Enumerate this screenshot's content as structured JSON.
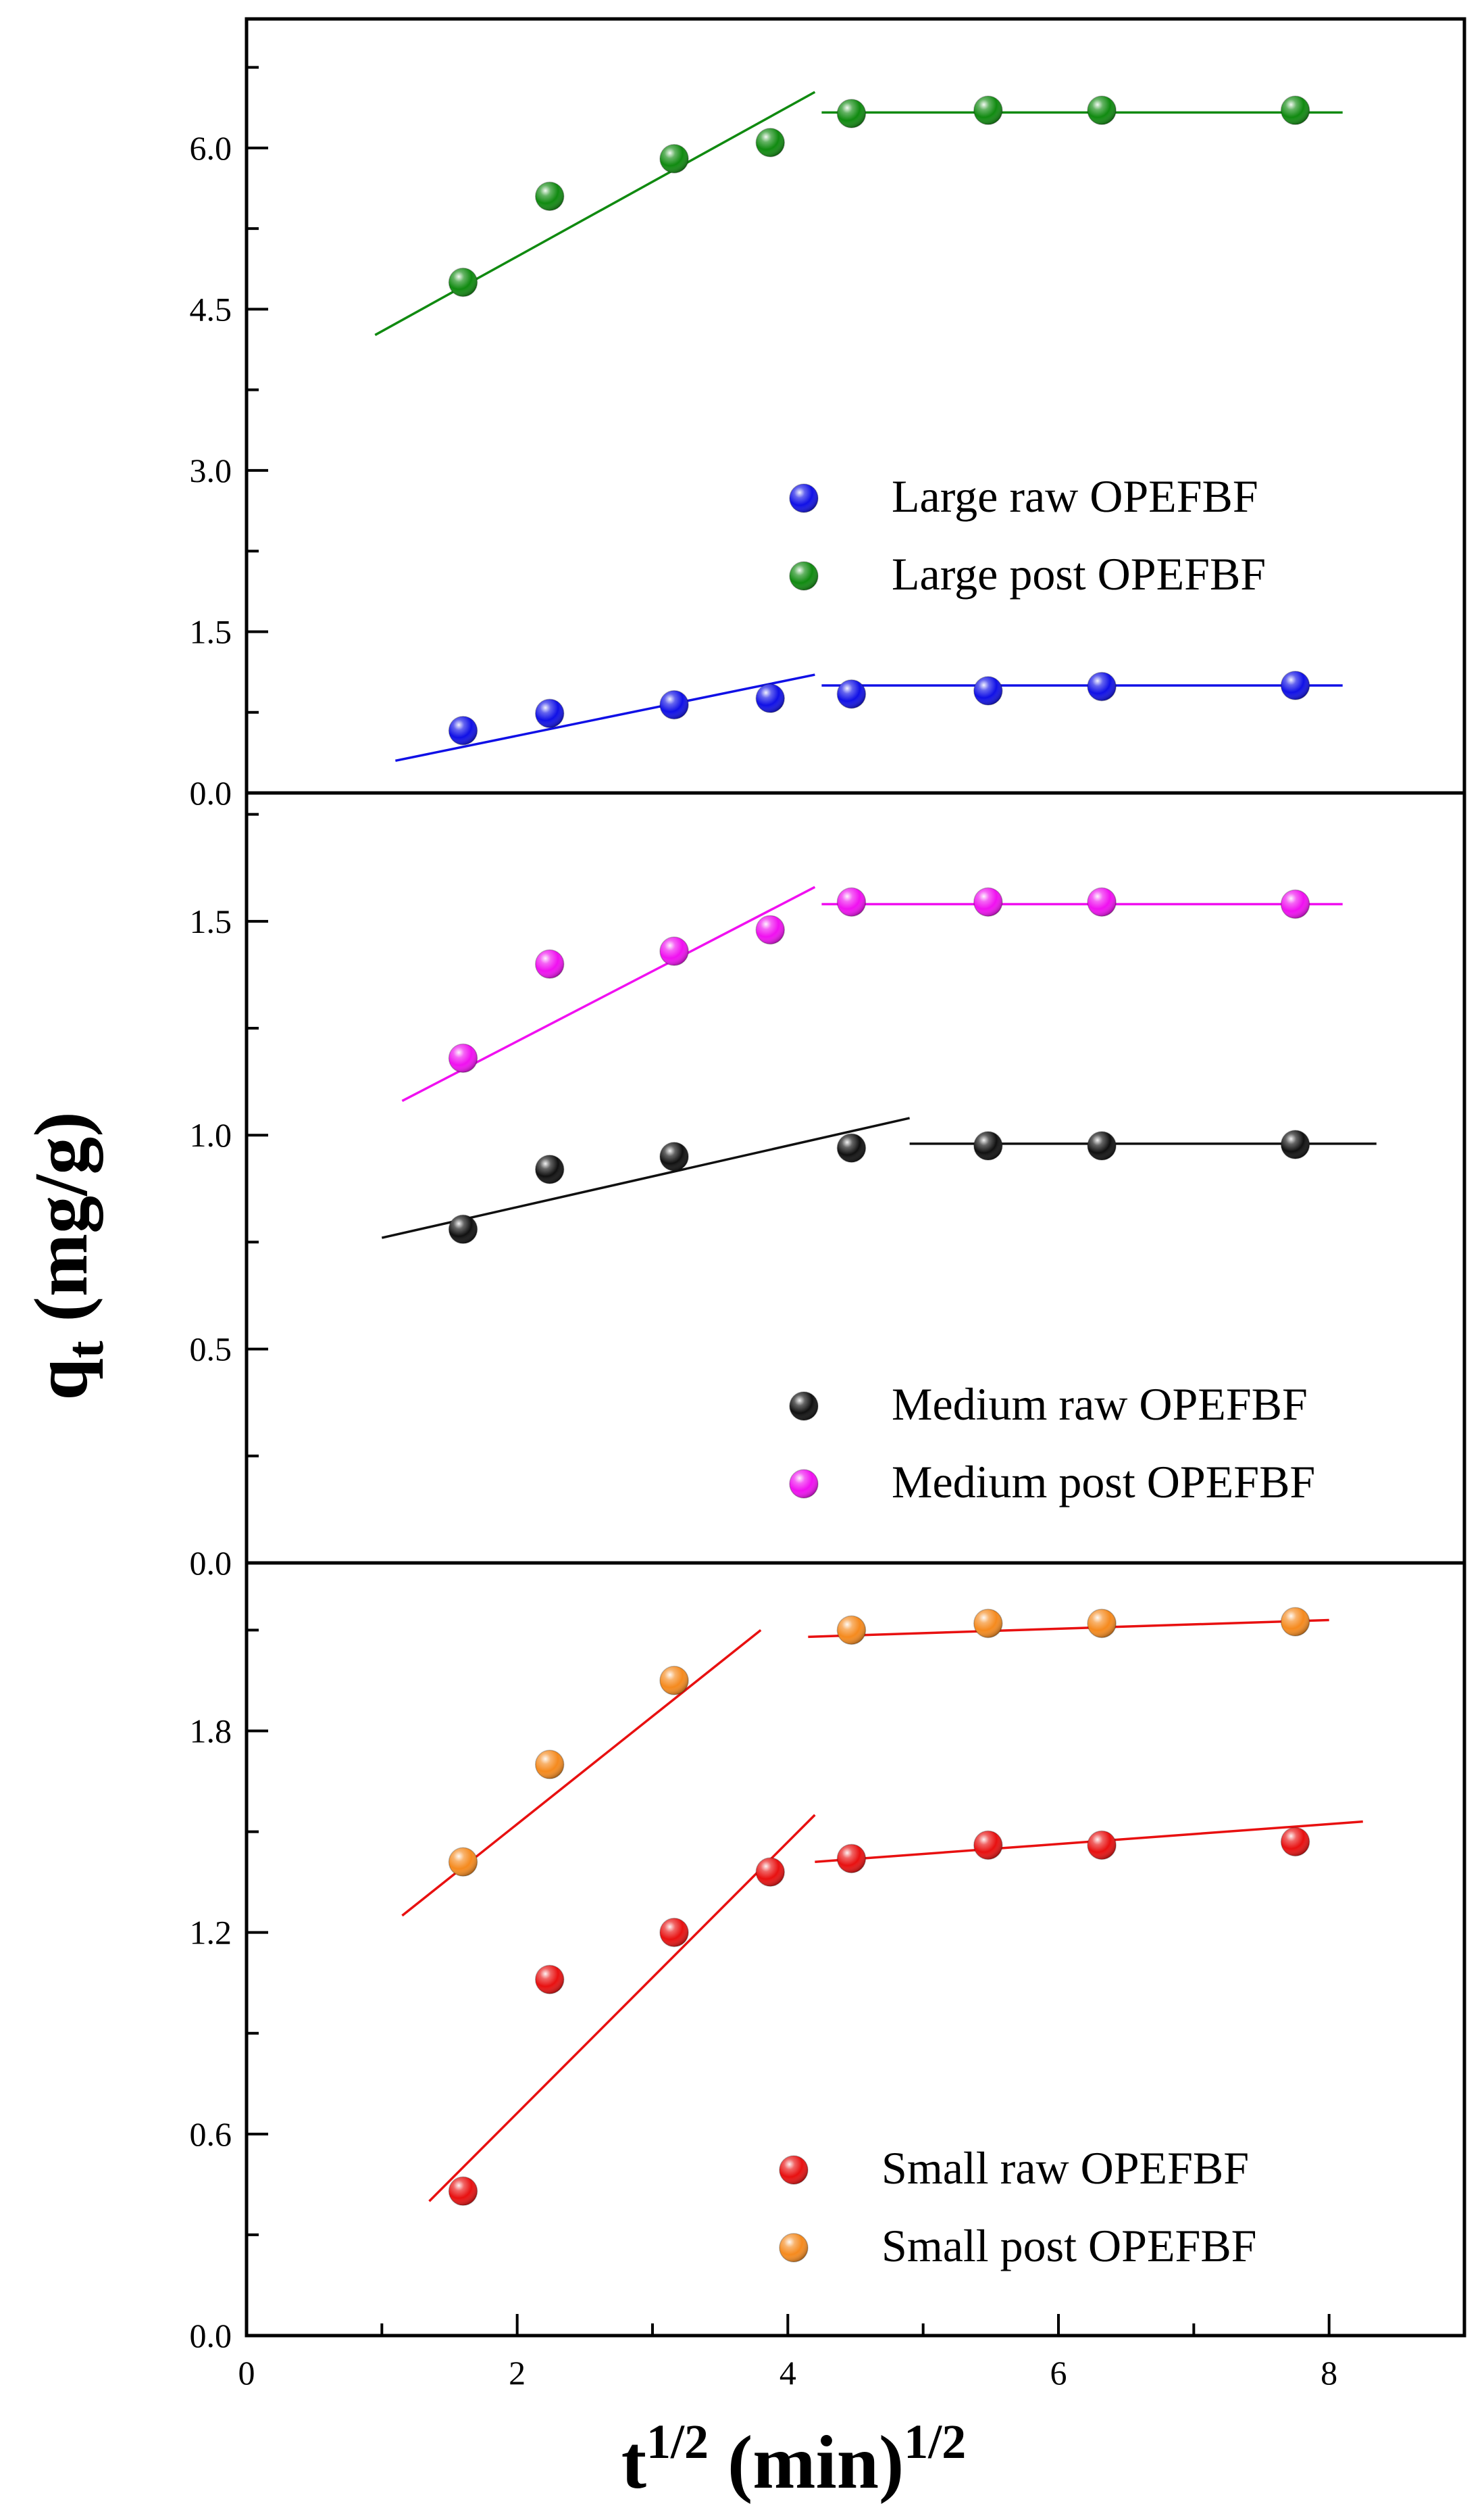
{
  "figure": {
    "ylabel": "q",
    "ylabel_sub": "t",
    "ylabel_unit": " (mg/g)",
    "xlabel": "t",
    "xlabel_sup": "1/2",
    "xlabel_unit": " (min)",
    "xlabel_unit_sup": "1/2"
  },
  "chart_data": [
    {
      "type": "scatter",
      "panel": "top",
      "xlim": [
        0,
        9
      ],
      "ylim": [
        0,
        7.2
      ],
      "yticks": [
        0.0,
        1.5,
        3.0,
        4.5,
        6.0
      ],
      "ytick_labels": [
        "0.0",
        "1.5",
        "3.0",
        "4.5",
        "6.0"
      ],
      "yminor_step": 0.75,
      "legend_position": "right",
      "series": [
        {
          "name": "Large raw OPEFBF",
          "color": "#1010e6",
          "x": [
            1.6,
            2.24,
            3.16,
            3.87,
            4.47,
            5.48,
            6.32,
            7.75
          ],
          "y": [
            0.58,
            0.74,
            0.82,
            0.88,
            0.92,
            0.95,
            0.99,
            1.0
          ],
          "fits": [
            {
              "x": [
                1.1,
                4.2
              ],
              "y": [
                0.3,
                1.1
              ]
            },
            {
              "x": [
                4.25,
                8.1
              ],
              "y": [
                1.0,
                1.0
              ]
            }
          ]
        },
        {
          "name": "Large post OPEFBF",
          "color": "#108a10",
          "x": [
            1.6,
            2.24,
            3.16,
            3.87,
            4.47,
            5.48,
            6.32,
            7.75
          ],
          "y": [
            4.75,
            5.55,
            5.9,
            6.05,
            6.32,
            6.35,
            6.35,
            6.35
          ],
          "fits": [
            {
              "x": [
                0.95,
                4.2
              ],
              "y": [
                4.26,
                6.52
              ]
            },
            {
              "x": [
                4.25,
                8.1
              ],
              "y": [
                6.33,
                6.33
              ]
            }
          ]
        }
      ]
    },
    {
      "type": "scatter",
      "panel": "middle",
      "xlim": [
        0,
        9
      ],
      "ylim": [
        0,
        1.8
      ],
      "yticks": [
        0.0,
        0.5,
        1.0,
        1.5
      ],
      "ytick_labels": [
        "0.0",
        "0.5",
        "1.0",
        "1.5"
      ],
      "yminor_step": 0.25,
      "legend_position": "bottom-right",
      "series": [
        {
          "name": "Medium raw OPEFBF",
          "color": "#101010",
          "x": [
            1.6,
            2.24,
            3.16,
            4.47,
            5.48,
            6.32,
            7.75
          ],
          "y": [
            0.78,
            0.92,
            0.95,
            0.97,
            0.975,
            0.975,
            0.978
          ],
          "fits": [
            {
              "x": [
                1.0,
                4.9
              ],
              "y": [
                0.76,
                1.04
              ]
            },
            {
              "x": [
                4.9,
                8.35
              ],
              "y": [
                0.98,
                0.98
              ]
            }
          ]
        },
        {
          "name": "Medium post OPEFBF",
          "color": "#f010f0",
          "x": [
            1.6,
            2.24,
            3.16,
            3.87,
            4.47,
            5.48,
            6.32,
            7.75
          ],
          "y": [
            1.18,
            1.4,
            1.43,
            1.48,
            1.545,
            1.545,
            1.545,
            1.54
          ],
          "fits": [
            {
              "x": [
                1.15,
                4.2
              ],
              "y": [
                1.08,
                1.58
              ]
            },
            {
              "x": [
                4.25,
                8.1
              ],
              "y": [
                1.54,
                1.54
              ]
            }
          ]
        }
      ]
    },
    {
      "type": "scatter",
      "panel": "bottom",
      "xlim": [
        0,
        9
      ],
      "ylim": [
        0,
        2.3
      ],
      "xticks": [
        0,
        2,
        4,
        6,
        8
      ],
      "xtick_labels": [
        "0",
        "2",
        "4",
        "6",
        "8"
      ],
      "yticks": [
        0.0,
        0.6,
        1.2,
        1.8
      ],
      "ytick_labels": [
        "0.0",
        "0.6",
        "1.2",
        "1.8"
      ],
      "yminor_step": 0.3,
      "legend_position": "bottom-right",
      "series": [
        {
          "name": "Small raw OPEFBF",
          "color": "#e81010",
          "fit_color": "#e81010",
          "x": [
            1.6,
            2.24,
            3.16,
            3.87,
            4.47,
            5.48,
            6.32,
            7.75
          ],
          "y": [
            0.43,
            1.06,
            1.2,
            1.38,
            1.42,
            1.46,
            1.46,
            1.47
          ],
          "fits": [
            {
              "x": [
                1.35,
                4.2
              ],
              "y": [
                0.4,
                1.55
              ]
            },
            {
              "x": [
                4.2,
                8.25
              ],
              "y": [
                1.41,
                1.53
              ]
            }
          ]
        },
        {
          "name": "Small post OPEFBF",
          "color": "#f58a1e",
          "fit_color": "#e81010",
          "x": [
            1.6,
            2.24,
            3.16,
            4.47,
            5.48,
            6.32,
            7.75
          ],
          "y": [
            1.41,
            1.7,
            1.95,
            2.1,
            2.12,
            2.12,
            2.125
          ],
          "fits": [
            {
              "x": [
                1.15,
                3.8
              ],
              "y": [
                1.25,
                2.1
              ]
            },
            {
              "x": [
                4.15,
                8.0
              ],
              "y": [
                2.08,
                2.13
              ]
            }
          ]
        }
      ]
    }
  ]
}
